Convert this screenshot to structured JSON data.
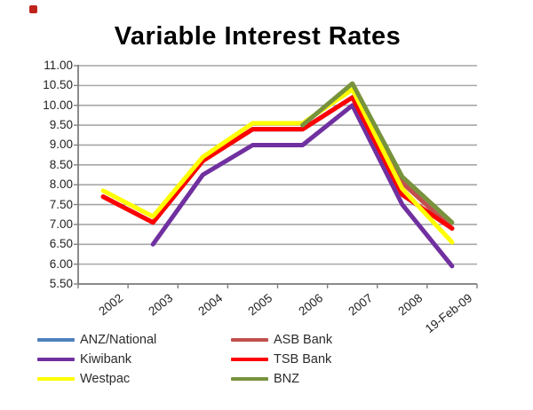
{
  "title": "Variable Interest Rates",
  "chart_data": {
    "type": "line",
    "title": "Variable Interest Rates",
    "categories": [
      "2002",
      "2003",
      "2004",
      "2005",
      "2006",
      "2007",
      "2008",
      "19-Feb-09"
    ],
    "series": [
      {
        "name": "ANZ/National",
        "color": "#4F81BD",
        "values": [
          7.7,
          7.05,
          8.6,
          9.4,
          9.4,
          10.2,
          7.75,
          6.9
        ]
      },
      {
        "name": "ASB Bank",
        "color": "#C0504D",
        "values": [
          7.7,
          7.05,
          8.6,
          9.4,
          9.4,
          10.2,
          8.05,
          6.9
        ]
      },
      {
        "name": "Kiwibank",
        "color": "#7030A0",
        "values": [
          null,
          6.5,
          8.25,
          9.0,
          9.0,
          10.0,
          7.5,
          5.95
        ]
      },
      {
        "name": "TSB Bank",
        "color": "#FF0000",
        "values": [
          7.7,
          7.05,
          8.6,
          9.4,
          9.4,
          10.2,
          7.75,
          6.9
        ]
      },
      {
        "name": "Westpac",
        "color": "#FFFF00",
        "values": [
          7.85,
          7.2,
          8.7,
          9.55,
          9.55,
          10.4,
          7.9,
          6.55
        ]
      },
      {
        "name": "BNZ",
        "color": "#77933C",
        "values": [
          null,
          null,
          null,
          null,
          9.5,
          10.55,
          8.2,
          7.05
        ]
      }
    ],
    "xlabel": "",
    "ylabel": "",
    "ylim": [
      5.5,
      11.0
    ],
    "y_tick_step": 0.5,
    "y_tick_labels": [
      "11.00",
      "10.50",
      "10.00",
      "9.50",
      "9.00",
      "8.50",
      "8.00",
      "7.50",
      "7.00",
      "6.50",
      "6.00",
      "5.50"
    ],
    "grid": true,
    "legend_position": "bottom",
    "legend_columns": [
      [
        "ANZ/National",
        "Kiwibank",
        "Westpac"
      ],
      [
        "ASB Bank",
        "TSB Bank",
        "BNZ"
      ]
    ],
    "colors": {
      "gridline": "#A6A6A6",
      "axis": "#808080",
      "title_text": "#000000",
      "tick_text": "#222222",
      "legend_text": "#2B2B2B",
      "artifact_mark": "#C0231D"
    }
  }
}
